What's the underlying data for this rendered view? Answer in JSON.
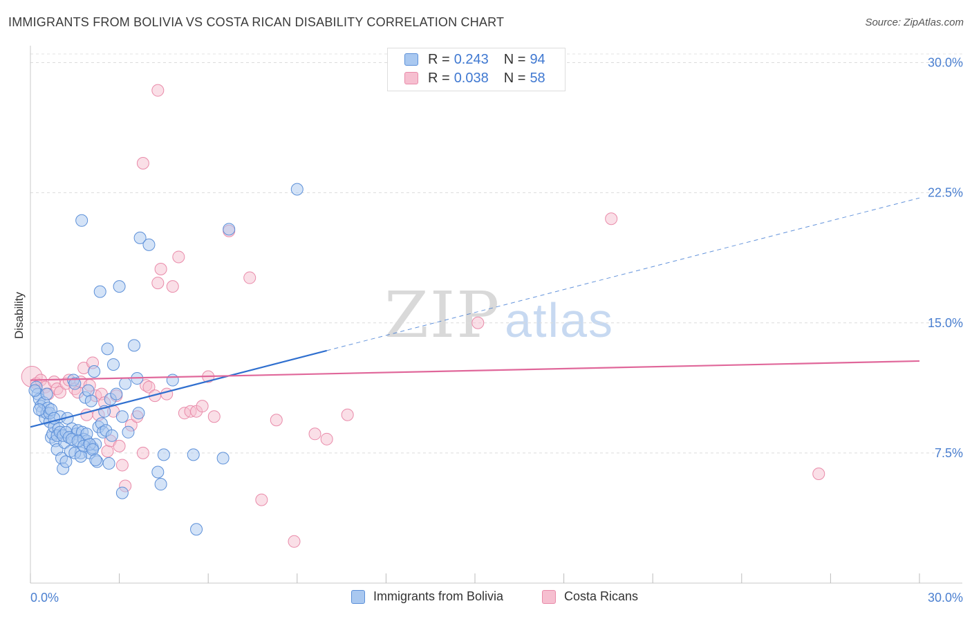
{
  "header": {
    "title": "IMMIGRANTS FROM BOLIVIA VS COSTA RICAN DISABILITY CORRELATION CHART",
    "source": "Source: ZipAtlas.com"
  },
  "watermark": {
    "zip": "ZIP",
    "atlas": "atlas"
  },
  "legend": {
    "rows": [
      {
        "r_label": "R =",
        "r_value": "0.243",
        "n_label": "N =",
        "n_value": "94"
      },
      {
        "r_label": "R =",
        "r_value": "0.038",
        "n_label": "N =",
        "n_value": "58"
      }
    ]
  },
  "bottom_legend": {
    "series1": "Immigrants from Bolivia",
    "series2": "Costa Ricans"
  },
  "colors": {
    "blue_fill": "#a9c8f0",
    "blue_stroke": "#5b8fd8",
    "blue_line": "#2f6fcf",
    "pink_fill": "#f6bfd0",
    "pink_stroke": "#e98aa9",
    "pink_line": "#e0679a",
    "tick_label": "#4a7fd0"
  },
  "chart_data": {
    "type": "scatter",
    "title": "IMMIGRANTS FROM BOLIVIA VS COSTA RICAN DISABILITY CORRELATION CHART",
    "xlabel": "",
    "ylabel": "Disability",
    "xlim": [
      0,
      30
    ],
    "ylim": [
      0,
      30.5
    ],
    "x_tick_labels": [
      "0.0%",
      "30.0%"
    ],
    "y_ticks": [
      7.5,
      15.0,
      22.5,
      30.0
    ],
    "y_tick_labels": [
      "7.5%",
      "15.0%",
      "22.5%",
      "30.0%"
    ],
    "series": [
      {
        "name": "Immigrants from Bolivia",
        "r": 0.243,
        "n": 94,
        "trend": {
          "x0": 0.0,
          "y0": 9.0,
          "x1": 10.0,
          "y1": 13.4,
          "dash_to_x": 30.0,
          "dash_to_y": 22.2
        },
        "points": [
          [
            0.2,
            11.3
          ],
          [
            0.25,
            10.9
          ],
          [
            0.3,
            10.6
          ],
          [
            0.35,
            10.2
          ],
          [
            0.4,
            9.9
          ],
          [
            0.45,
            10.4
          ],
          [
            0.5,
            9.5
          ],
          [
            0.55,
            9.8
          ],
          [
            0.6,
            10.1
          ],
          [
            0.65,
            9.3
          ],
          [
            0.7,
            8.4
          ],
          [
            0.75,
            8.6
          ],
          [
            0.8,
            9.0
          ],
          [
            0.85,
            8.2
          ],
          [
            0.9,
            7.7
          ],
          [
            0.95,
            8.9
          ],
          [
            1.0,
            9.6
          ],
          [
            1.05,
            7.2
          ],
          [
            1.1,
            6.6
          ],
          [
            1.15,
            8.1
          ],
          [
            1.2,
            7.0
          ],
          [
            1.25,
            9.5
          ],
          [
            1.3,
            8.4
          ],
          [
            1.35,
            7.6
          ],
          [
            1.4,
            8.9
          ],
          [
            1.45,
            11.7
          ],
          [
            1.5,
            11.5
          ],
          [
            1.55,
            8.6
          ],
          [
            1.6,
            8.8
          ],
          [
            1.65,
            8.2
          ],
          [
            1.7,
            7.5
          ],
          [
            1.75,
            8.7
          ],
          [
            1.8,
            8.3
          ],
          [
            1.85,
            10.7
          ],
          [
            1.9,
            8.2
          ],
          [
            1.95,
            11.1
          ],
          [
            2.0,
            7.5
          ],
          [
            2.05,
            10.5
          ],
          [
            2.1,
            7.8
          ],
          [
            2.15,
            12.2
          ],
          [
            2.2,
            8.0
          ],
          [
            2.25,
            7.0
          ],
          [
            2.3,
            9.0
          ],
          [
            2.35,
            16.8
          ],
          [
            2.4,
            9.2
          ],
          [
            2.45,
            8.7
          ],
          [
            2.5,
            9.9
          ],
          [
            2.55,
            8.8
          ],
          [
            2.6,
            13.5
          ],
          [
            2.65,
            6.9
          ],
          [
            2.7,
            10.6
          ],
          [
            2.75,
            8.5
          ],
          [
            2.8,
            12.6
          ],
          [
            2.9,
            10.9
          ],
          [
            3.0,
            17.1
          ],
          [
            3.1,
            9.6
          ],
          [
            3.2,
            11.5
          ],
          [
            3.3,
            8.7
          ],
          [
            3.5,
            13.7
          ],
          [
            3.6,
            11.8
          ],
          [
            3.65,
            9.8
          ],
          [
            3.7,
            19.9
          ],
          [
            4.0,
            19.5
          ],
          [
            4.3,
            6.4
          ],
          [
            4.4,
            5.7
          ],
          [
            4.5,
            7.4
          ],
          [
            4.8,
            11.7
          ],
          [
            5.5,
            7.4
          ],
          [
            5.6,
            3.1
          ],
          [
            6.5,
            7.2
          ],
          [
            6.7,
            20.4
          ],
          [
            9.0,
            22.7
          ],
          [
            1.73,
            20.9
          ],
          [
            0.15,
            11.1
          ],
          [
            0.3,
            10.0
          ],
          [
            0.55,
            10.9
          ],
          [
            0.65,
            9.8
          ],
          [
            0.7,
            10.0
          ],
          [
            0.8,
            9.5
          ],
          [
            0.9,
            8.5
          ],
          [
            1.0,
            8.7
          ],
          [
            1.1,
            8.5
          ],
          [
            1.2,
            8.7
          ],
          [
            1.3,
            8.4
          ],
          [
            1.4,
            8.3
          ],
          [
            1.5,
            7.5
          ],
          [
            1.6,
            8.2
          ],
          [
            1.7,
            7.3
          ],
          [
            1.8,
            7.9
          ],
          [
            1.9,
            8.6
          ],
          [
            2.0,
            8.0
          ],
          [
            2.1,
            7.7
          ],
          [
            3.1,
            5.2
          ],
          [
            2.2,
            7.1
          ]
        ]
      },
      {
        "name": "Costa Ricans",
        "r": 0.038,
        "n": 58,
        "trend": {
          "x0": 0.0,
          "y0": 11.7,
          "x1": 30.0,
          "y1": 12.8
        },
        "points": [
          [
            0.05,
            11.9
          ],
          [
            0.2,
            11.5
          ],
          [
            0.35,
            11.7
          ],
          [
            0.5,
            11.3
          ],
          [
            0.6,
            10.9
          ],
          [
            0.8,
            11.6
          ],
          [
            0.9,
            11.2
          ],
          [
            1.0,
            11.0
          ],
          [
            1.2,
            11.5
          ],
          [
            1.3,
            11.7
          ],
          [
            1.5,
            11.2
          ],
          [
            1.6,
            11.0
          ],
          [
            1.7,
            11.6
          ],
          [
            1.8,
            12.4
          ],
          [
            1.9,
            9.7
          ],
          [
            2.0,
            11.4
          ],
          [
            2.1,
            12.7
          ],
          [
            2.2,
            10.8
          ],
          [
            2.3,
            9.7
          ],
          [
            2.4,
            10.9
          ],
          [
            2.5,
            10.4
          ],
          [
            2.6,
            7.6
          ],
          [
            2.7,
            8.2
          ],
          [
            2.8,
            9.9
          ],
          [
            2.9,
            10.8
          ],
          [
            3.0,
            7.9
          ],
          [
            3.1,
            6.8
          ],
          [
            3.2,
            5.6
          ],
          [
            3.4,
            9.1
          ],
          [
            3.6,
            9.6
          ],
          [
            3.8,
            7.5
          ],
          [
            3.9,
            11.4
          ],
          [
            4.0,
            11.3
          ],
          [
            4.2,
            10.8
          ],
          [
            4.3,
            17.3
          ],
          [
            4.4,
            18.1
          ],
          [
            4.6,
            10.9
          ],
          [
            4.8,
            17.1
          ],
          [
            5.0,
            18.8
          ],
          [
            5.2,
            9.8
          ],
          [
            5.4,
            9.9
          ],
          [
            5.6,
            9.9
          ],
          [
            5.8,
            10.2
          ],
          [
            6.0,
            11.9
          ],
          [
            6.2,
            9.6
          ],
          [
            6.7,
            20.3
          ],
          [
            7.4,
            17.6
          ],
          [
            7.8,
            4.8
          ],
          [
            8.3,
            9.4
          ],
          [
            8.9,
            2.4
          ],
          [
            9.6,
            8.6
          ],
          [
            10.0,
            8.3
          ],
          [
            10.7,
            9.7
          ],
          [
            15.1,
            15.0
          ],
          [
            19.6,
            21.0
          ],
          [
            26.6,
            6.3
          ],
          [
            3.8,
            24.2
          ],
          [
            4.3,
            28.4
          ]
        ]
      }
    ]
  }
}
